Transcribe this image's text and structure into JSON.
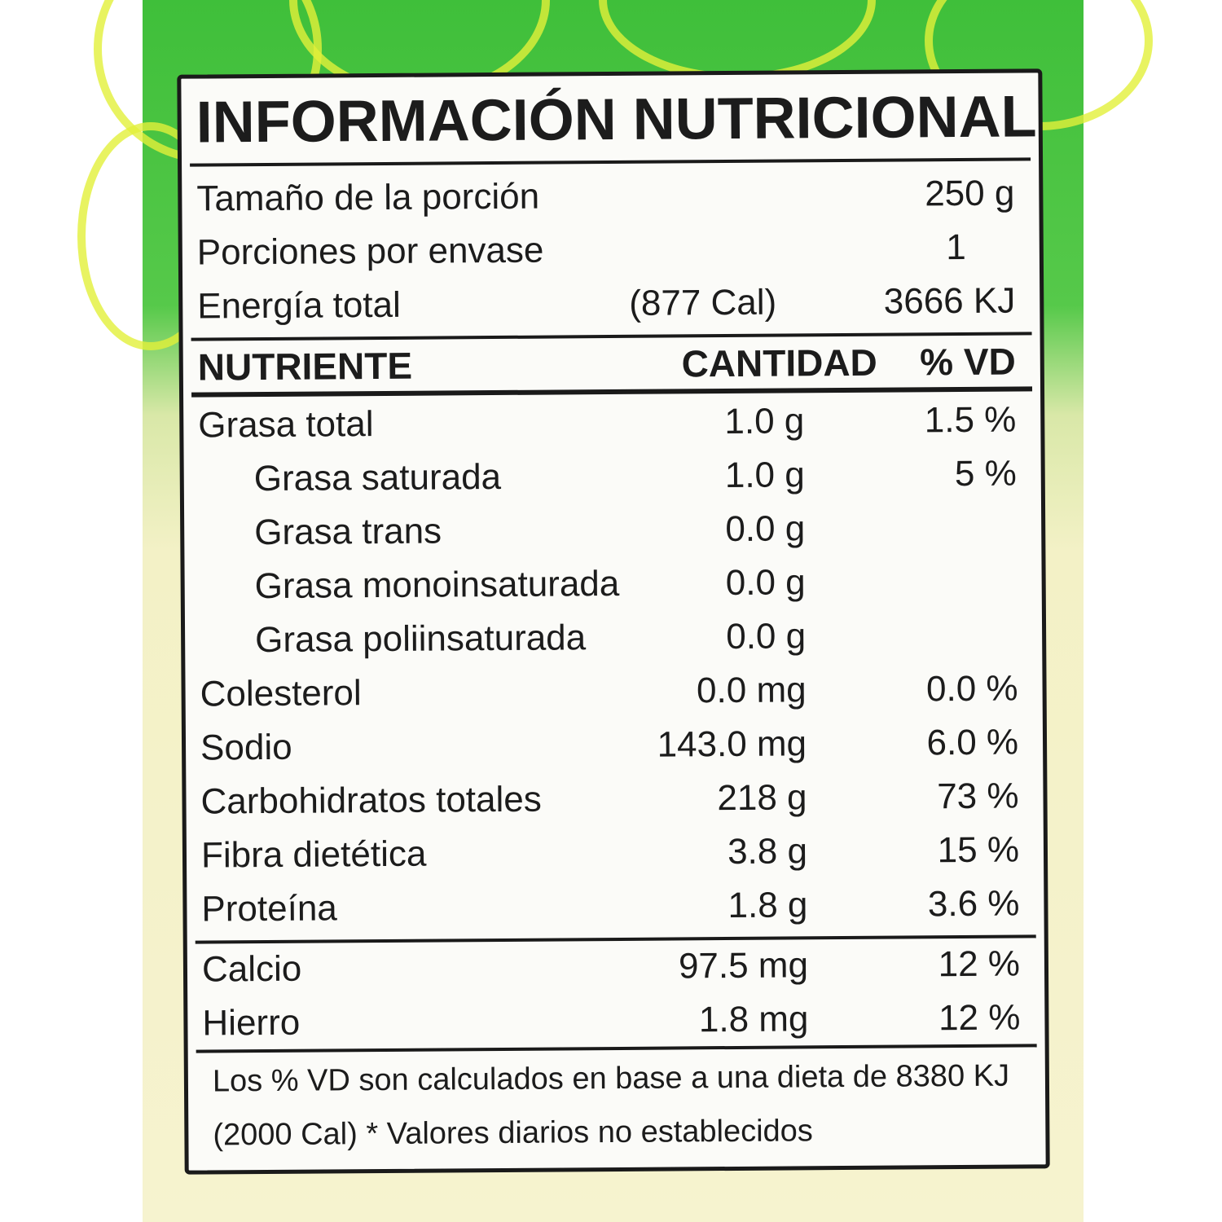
{
  "title": "INFORMACIÓN NUTRICIONAL",
  "serving": {
    "size_label": "Tamaño de la porción",
    "size_value": "250 g",
    "per_pack_label": "Porciones por envase",
    "per_pack_value": "1",
    "energy_label": "Energía total",
    "energy_cal": "(877 Cal)",
    "energy_kj": "3666 KJ"
  },
  "header": {
    "nutrient": "NUTRIENTE",
    "amount": "CANTIDAD",
    "dv": "% VD"
  },
  "nutrients": [
    {
      "name": "Grasa total",
      "amount": "1.0 g",
      "dv": "1.5 %"
    },
    {
      "name": "Grasa saturada",
      "amount": "1.0 g",
      "dv": "5 %"
    },
    {
      "name": "Grasa trans",
      "amount": "0.0 g",
      "dv": ""
    },
    {
      "name": "Grasa monoinsaturada",
      "amount": "0.0 g",
      "dv": ""
    },
    {
      "name": "Grasa poliinsaturada",
      "amount": "0.0 g",
      "dv": ""
    },
    {
      "name": "Colesterol",
      "amount": "0.0 mg",
      "dv": "0.0 %"
    },
    {
      "name": "Sodio",
      "amount": "143.0 mg",
      "dv": "6.0 %"
    },
    {
      "name": "Carbohidratos totales",
      "amount": "218 g",
      "dv": "73 %"
    },
    {
      "name": "Fibra dietética",
      "amount": "3.8 g",
      "dv": "15 %"
    },
    {
      "name": "Proteína",
      "amount": "1.8 g",
      "dv": "3.6 %"
    }
  ],
  "minerals": [
    {
      "name": "Calcio",
      "amount": "97.5 mg",
      "dv": "12 %"
    },
    {
      "name": "Hierro",
      "amount": "1.8 mg",
      "dv": "12 %"
    }
  ],
  "footer": {
    "line1": "Los % VD son calculados en base a una dieta de 8380 KJ",
    "line2": "(2000 Cal) * Valores diarios no establecidos"
  }
}
